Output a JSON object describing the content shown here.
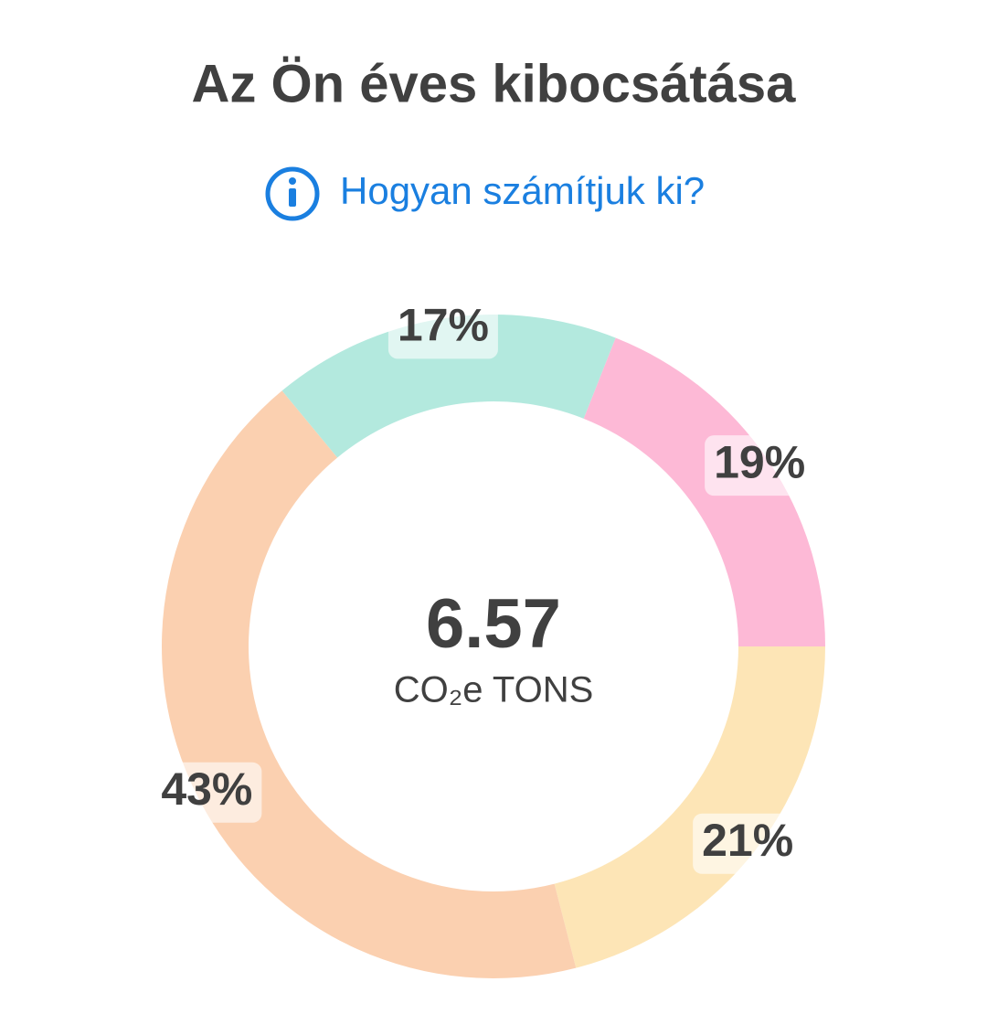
{
  "header": {
    "title": "Az Ön éves kibocsátása",
    "link": "Hogyan számítjuk ki?"
  },
  "chart_data": {
    "type": "donut",
    "values": [
      19,
      21,
      43,
      17
    ],
    "value_labels": [
      "19%",
      "21%",
      "43%",
      "17%"
    ],
    "colors": [
      "#fdb9d6",
      "#fde5b6",
      "#fbd0b0",
      "#b3e9de"
    ],
    "total": 6.57,
    "total_label": "CO₂e TONS"
  }
}
